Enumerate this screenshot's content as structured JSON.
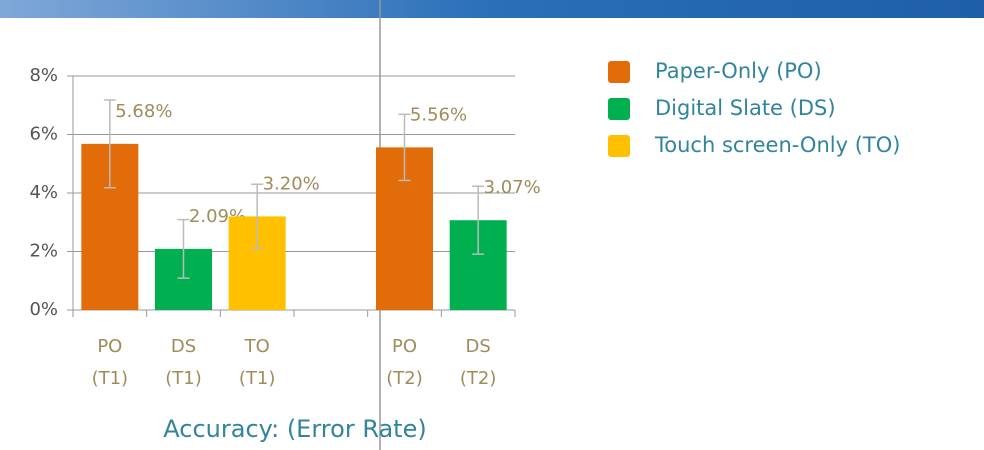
{
  "chart_data": {
    "type": "bar",
    "title": "Accuracy: (Error Rate)",
    "categories": [
      [
        "PO",
        "(T1)"
      ],
      [
        "DS",
        "(T1)"
      ],
      [
        "TO",
        "(T1)"
      ],
      null,
      [
        "PO",
        "(T2)"
      ],
      [
        "DS",
        "(T2)"
      ]
    ],
    "values": [
      5.68,
      2.09,
      3.2,
      null,
      5.56,
      3.07
    ],
    "value_labels": [
      "5.68%",
      "2.09%",
      "3.20%",
      null,
      "5.56%",
      "3.07%"
    ],
    "errors": [
      1.5,
      1.0,
      1.1,
      null,
      1.13,
      1.16
    ],
    "colors": [
      "#e36c0a",
      "#00b050",
      "#ffc000",
      null,
      "#e36c0a",
      "#00b050"
    ],
    "ylim": [
      0,
      8
    ],
    "yticks": [
      {
        "value": 0,
        "label": "0%"
      },
      {
        "value": 2,
        "label": "2%"
      },
      {
        "value": 4,
        "label": "4%"
      },
      {
        "value": 6,
        "label": "6%"
      },
      {
        "value": 8,
        "label": "8%"
      }
    ],
    "grid": true,
    "legend_position": "right",
    "legend": [
      {
        "name": "Paper-Only (PO)",
        "color": "#e36c0a"
      },
      {
        "name": "Digital Slate (DS)",
        "color": "#00b050"
      },
      {
        "name": "Touch screen-Only (TO)",
        "color": "#ffc000"
      }
    ]
  }
}
